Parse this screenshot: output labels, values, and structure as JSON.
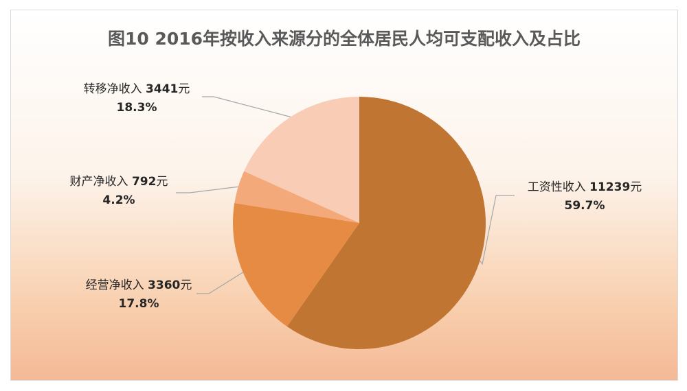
{
  "chart_data": {
    "type": "pie",
    "title": "图10  2016年按收入来源分的全体居民人均可支配收入及占比",
    "unit": "元",
    "slices": [
      {
        "label": "工资性收入",
        "value": 11239,
        "value_text": "11239元",
        "percent_text": "59.7%",
        "color": "#c17533"
      },
      {
        "label": "经营净收入",
        "value": 3360,
        "value_text": "3360元",
        "percent_text": "17.8%",
        "color": "#e68b43"
      },
      {
        "label": "财产净收入",
        "value": 792,
        "value_text": "792元",
        "percent_text": "4.2%",
        "color": "#f4a97b"
      },
      {
        "label": "转移净收入",
        "value": 3441,
        "value_text": "3441元",
        "percent_text": "18.3%",
        "color": "#f8ccb5"
      }
    ]
  }
}
